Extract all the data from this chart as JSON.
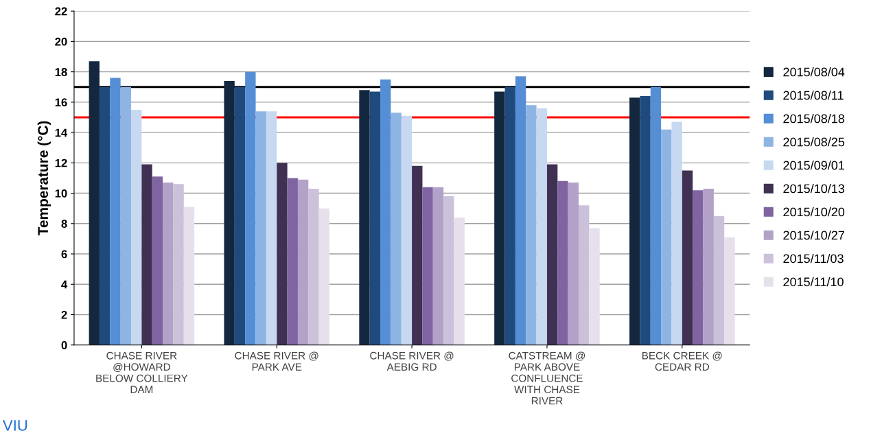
{
  "chart_data": {
    "type": "bar",
    "ylabel": "Temperature (°C)",
    "categories": [
      "CHASE RIVER\n@HOWARD\nBELOW COLLIERY\nDAM",
      "CHASE RIVER @\nPARK AVE",
      "CHASE RIVER @\nAEBIG RD",
      "CATSTREAM @\nPARK ABOVE\nCONFLUENCE\nWITH CHASE\nRIVER",
      "BECK CREEK @\nCEDAR RD"
    ],
    "series": [
      {
        "name": "2015/08/04",
        "color": "#13283f",
        "values": [
          18.7,
          17.4,
          16.8,
          16.7,
          16.3
        ]
      },
      {
        "name": "2015/08/11",
        "color": "#1f4a7d",
        "values": [
          17.0,
          17.0,
          16.7,
          17.0,
          16.4
        ]
      },
      {
        "name": "2015/08/18",
        "color": "#558ed5",
        "values": [
          17.6,
          18.0,
          17.5,
          17.7,
          17.0
        ]
      },
      {
        "name": "2015/08/25",
        "color": "#8eb4e3",
        "values": [
          17.0,
          15.4,
          15.3,
          15.8,
          14.2
        ]
      },
      {
        "name": "2015/09/01",
        "color": "#c6d9f1",
        "values": [
          15.5,
          15.4,
          15.1,
          15.6,
          14.7
        ]
      },
      {
        "name": "2015/10/13",
        "color": "#403152",
        "values": [
          11.9,
          12.0,
          11.8,
          11.9,
          11.5
        ]
      },
      {
        "name": "2015/10/20",
        "color": "#8064a2",
        "values": [
          11.1,
          11.0,
          10.4,
          10.8,
          10.2
        ]
      },
      {
        "name": "2015/10/27",
        "color": "#b3a2c7",
        "values": [
          10.7,
          10.9,
          10.4,
          10.7,
          10.3
        ]
      },
      {
        "name": "2015/11/03",
        "color": "#ccc1da",
        "values": [
          10.6,
          10.3,
          9.8,
          9.2,
          8.5
        ]
      },
      {
        "name": "2015/11/10",
        "color": "#e6e0ec",
        "values": [
          9.1,
          9.0,
          8.4,
          7.7,
          7.1
        ]
      }
    ],
    "ylim": [
      0,
      22
    ],
    "yticks": [
      0,
      2,
      4,
      6,
      8,
      10,
      12,
      14,
      16,
      18,
      20,
      22
    ],
    "grid": "y",
    "legend": "right",
    "ref_lines": [
      {
        "axis": "y",
        "value": 17,
        "color": "#000000"
      },
      {
        "axis": "y",
        "value": 15,
        "color": "#ff0000"
      }
    ],
    "annotations": [
      "VIU"
    ]
  }
}
